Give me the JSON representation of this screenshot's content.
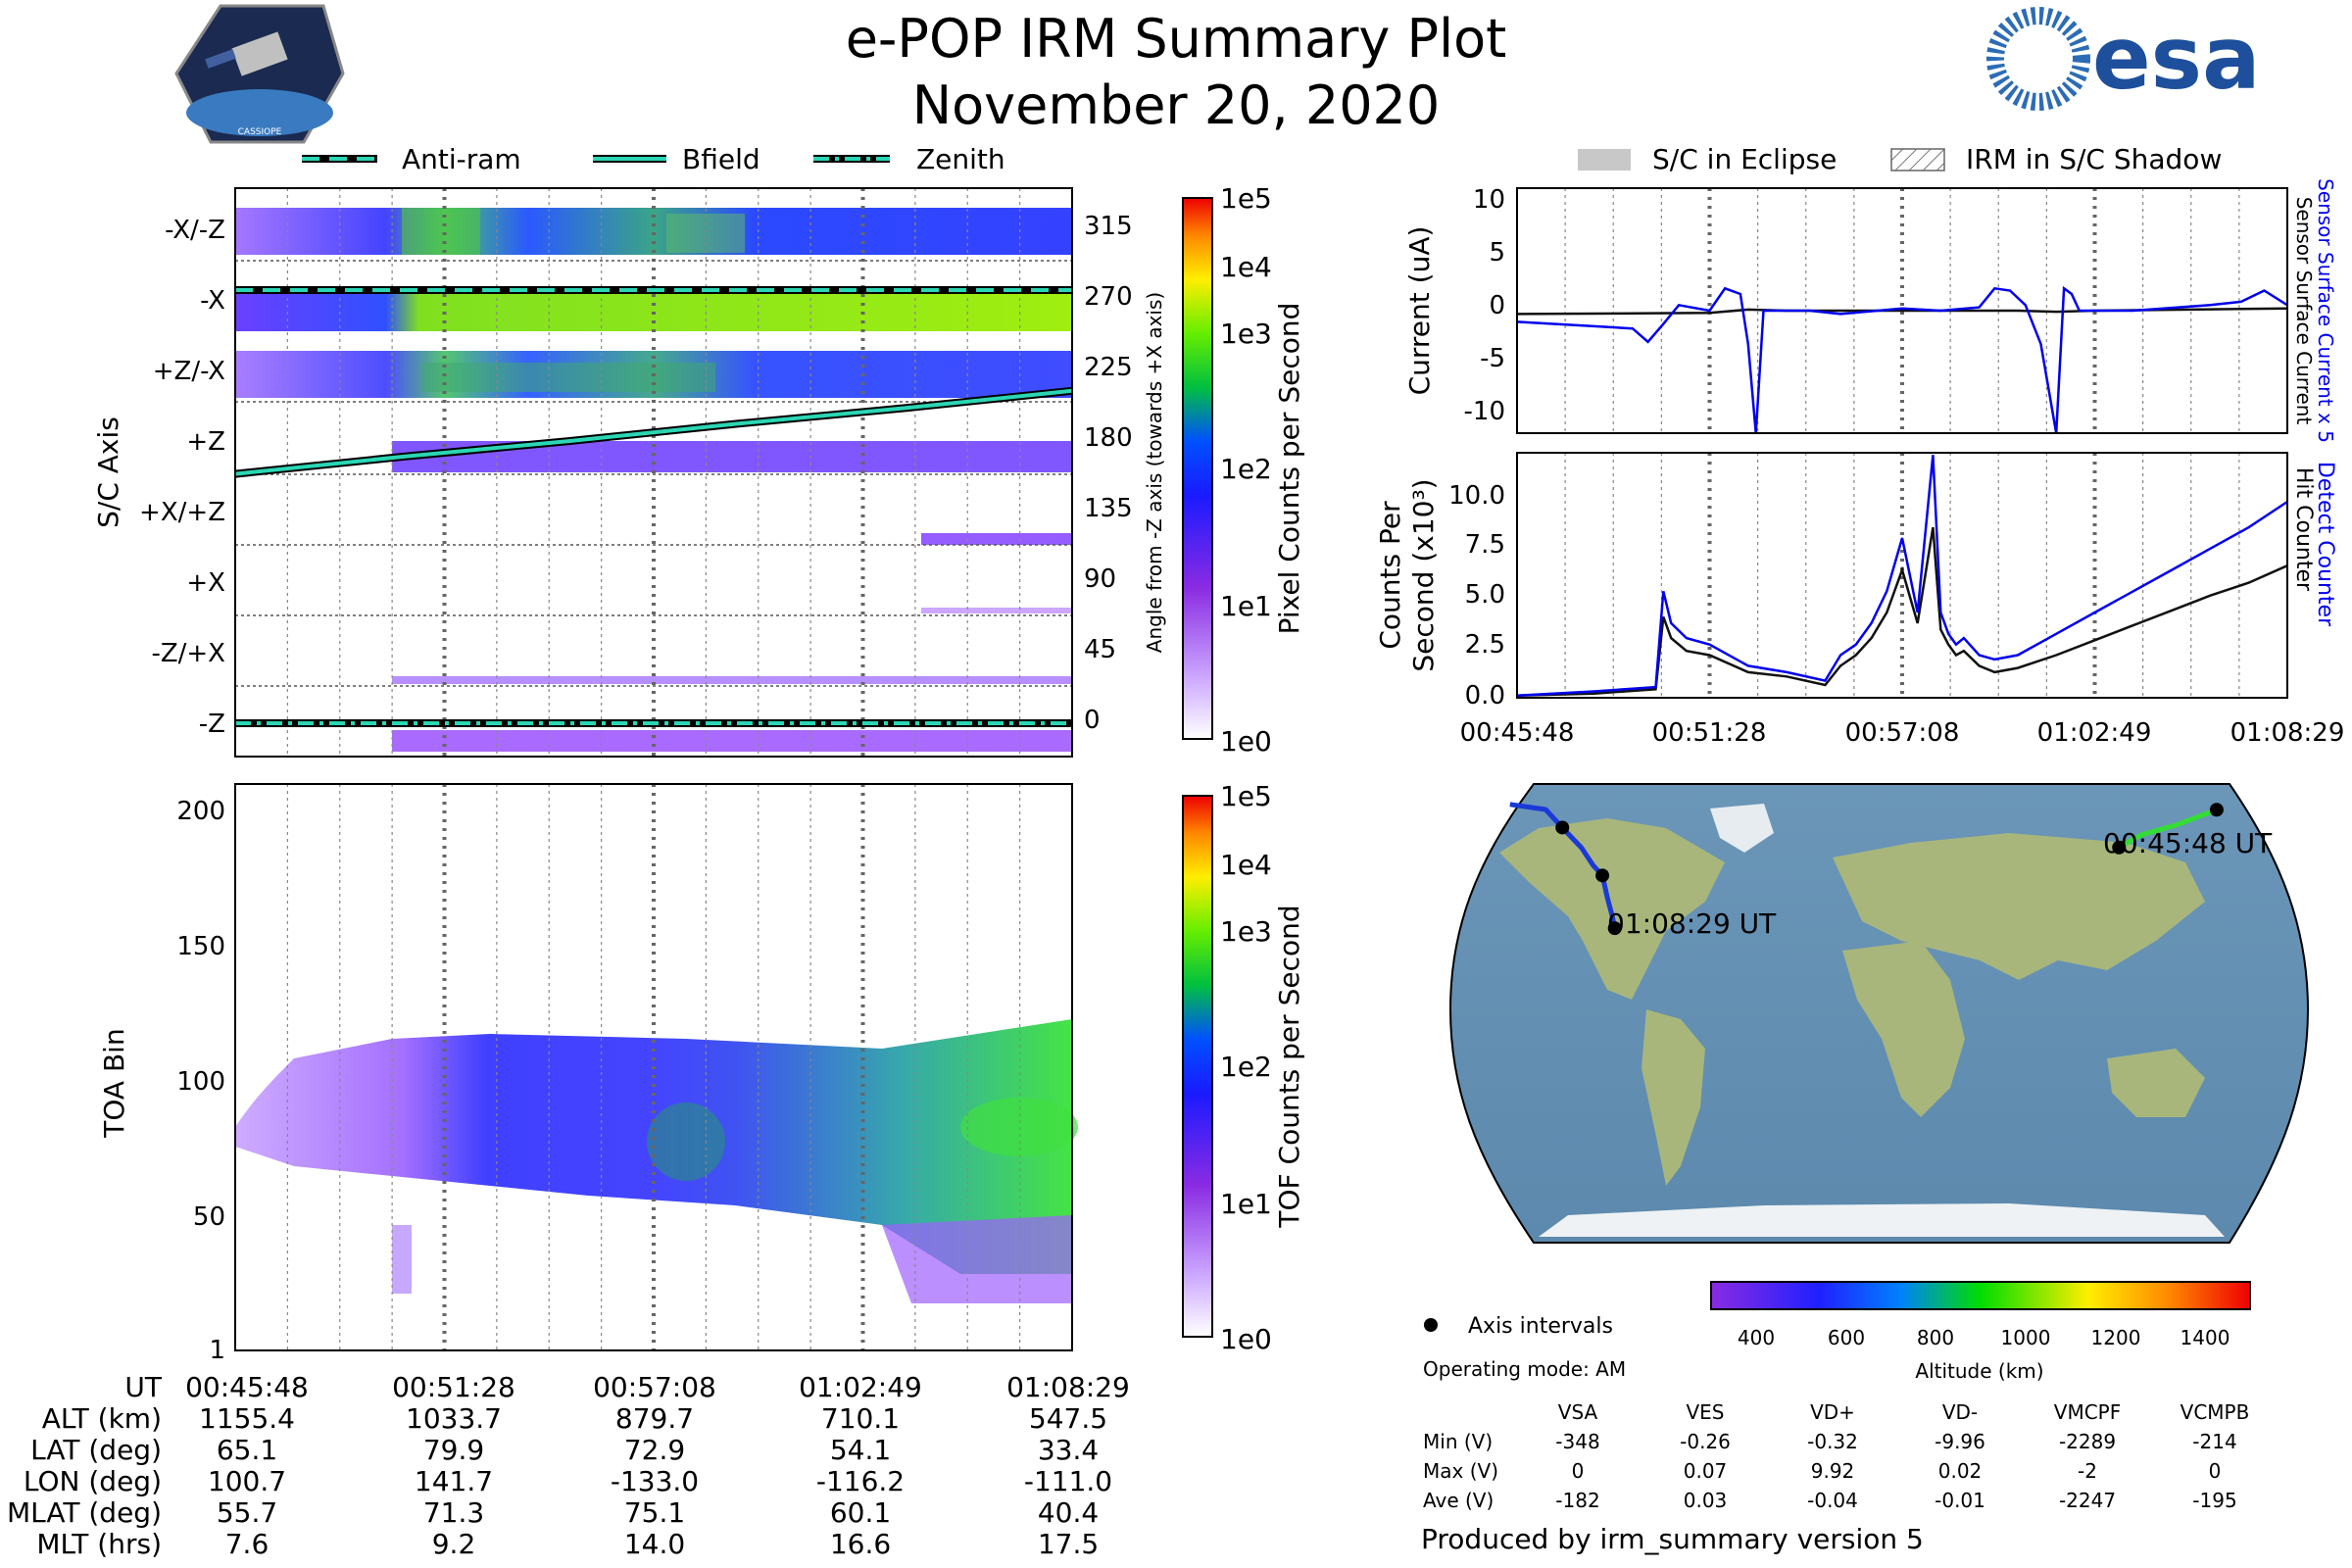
{
  "header": {
    "title": "e-POP IRM Summary Plot",
    "date": "November 20, 2020",
    "mission_logo_text": "CASSIOPE",
    "agency_logo_text": "esa"
  },
  "colors": {
    "trace_blue": "#0000ee",
    "trace_black": "#111111",
    "line_teal": "#2ad6b4",
    "gridline": "#555555"
  },
  "legend_top_left": [
    {
      "label": "Anti-ram",
      "style": "dashed"
    },
    {
      "label": "Bfield",
      "style": "solid"
    },
    {
      "label": "Zenith",
      "style": "dashdot"
    }
  ],
  "legend_top_right": [
    {
      "label": "S/C in Eclipse",
      "style": "gray-fill"
    },
    {
      "label": "IRM in S/C Shadow",
      "style": "hatched"
    }
  ],
  "time_ticks": [
    "00:45:48",
    "00:51:28",
    "00:57:08",
    "01:02:49",
    "01:08:29"
  ],
  "chart_data": [
    {
      "type": "heatmap",
      "id": "sc_axis_spectrogram",
      "ylabel": "S/C Axis",
      "y_categories": [
        "-X/-Z",
        "-X",
        "+Z/-X",
        "+Z",
        "+X/+Z",
        "+X",
        "-Z/+X",
        "-Z"
      ],
      "right_axis_label": "Angle from -Z axis (towards +X axis)",
      "right_ticks": [
        "315",
        "270",
        "225",
        "180",
        "135",
        "90",
        "45",
        "0"
      ],
      "colorbar": {
        "label": "Pixel Counts per Second",
        "ticks": [
          "1e5",
          "1e4",
          "1e3",
          "1e2",
          "1e1",
          "1e0"
        ],
        "scale": "log"
      },
      "bfield_angle_deg": [
        [
          0,
          159
        ],
        [
          0.2,
          170
        ],
        [
          0.4,
          180
        ],
        [
          0.6,
          191
        ],
        [
          0.8,
          201
        ],
        [
          1.0,
          212
        ]
      ],
      "anti_ram_angle_deg": 275,
      "zenith_angle_deg": 0
    },
    {
      "type": "heatmap",
      "id": "toa_spectrogram",
      "ylabel": "TOA Bin",
      "y_ticks": [
        "200",
        "150",
        "100",
        "50",
        "1"
      ],
      "ylim": [
        1,
        210
      ],
      "colorbar": {
        "label": "TOF Counts per Second",
        "ticks": [
          "1e5",
          "1e4",
          "1e3",
          "1e2",
          "1e1",
          "1e0"
        ],
        "scale": "log"
      }
    },
    {
      "type": "line",
      "id": "current_plot",
      "ylabel": "Current (uA)",
      "right_label_blue": "Sensor Surface Current x 5",
      "right_label_black": "Sensor Surface Current",
      "y_ticks": [
        "10",
        "5",
        "0",
        "-5",
        "-10"
      ],
      "ylim": [
        -11,
        11
      ],
      "series": [
        {
          "name": "Sensor Surface Current x 5",
          "color": "blue",
          "x": [
            0,
            0.05,
            0.1,
            0.15,
            0.17,
            0.19,
            0.21,
            0.25,
            0.27,
            0.29,
            0.3,
            0.31,
            0.32,
            0.38,
            0.42,
            0.5,
            0.55,
            0.6,
            0.62,
            0.64,
            0.66,
            0.68,
            0.7,
            0.71,
            0.72,
            0.73,
            0.8,
            0.9,
            0.94,
            0.97,
            1.0
          ],
          "y": [
            -1,
            -1.2,
            -1.4,
            -1.6,
            -2.8,
            -1.2,
            0.5,
            0,
            2,
            1.5,
            -3,
            -11,
            0,
            0,
            -0.3,
            0.2,
            0,
            0.3,
            2,
            1.8,
            0.5,
            -3,
            -11,
            2,
            1.5,
            0,
            0,
            0.5,
            0.8,
            1.8,
            0.5
          ]
        },
        {
          "name": "Sensor Surface Current",
          "color": "black",
          "x": [
            0,
            0.25,
            0.3,
            0.35,
            0.5,
            0.65,
            0.7,
            0.75,
            1.0
          ],
          "y": [
            -0.3,
            -0.2,
            0.1,
            0,
            0,
            0,
            -0.1,
            0,
            0.2
          ]
        }
      ]
    },
    {
      "type": "line",
      "id": "counts_plot",
      "ylabel": "Counts Per Second (x10³)",
      "ylabel_line1": "Counts Per",
      "ylabel_line2": "Second (x10³)",
      "right_label_blue": "Detect Counter",
      "right_label_black": "Hit Counter",
      "y_ticks": [
        "10.0",
        "7.5",
        "5.0",
        "2.5",
        "0.0"
      ],
      "ylim": [
        0,
        11.5
      ],
      "series": [
        {
          "name": "Detect Counter",
          "color": "blue",
          "x": [
            0,
            0.1,
            0.18,
            0.19,
            0.2,
            0.22,
            0.25,
            0.3,
            0.35,
            0.4,
            0.42,
            0.44,
            0.46,
            0.48,
            0.5,
            0.52,
            0.54,
            0.55,
            0.56,
            0.57,
            0.58,
            0.6,
            0.62,
            0.65,
            0.7,
            0.75,
            0.8,
            0.85,
            0.9,
            0.95,
            1.0
          ],
          "y": [
            0.1,
            0.3,
            0.5,
            5.0,
            3.5,
            2.8,
            2.5,
            1.5,
            1.2,
            0.8,
            2.0,
            2.5,
            3.5,
            5.0,
            7.5,
            4.0,
            11.4,
            4.0,
            3.0,
            2.5,
            2.8,
            2.0,
            1.8,
            2.0,
            3.0,
            4.0,
            5.0,
            6.0,
            7.0,
            8.0,
            9.2
          ]
        },
        {
          "name": "Hit Counter",
          "color": "black",
          "x": [
            0,
            0.1,
            0.18,
            0.19,
            0.2,
            0.22,
            0.25,
            0.3,
            0.35,
            0.4,
            0.42,
            0.44,
            0.46,
            0.48,
            0.5,
            0.52,
            0.54,
            0.55,
            0.56,
            0.57,
            0.58,
            0.6,
            0.62,
            0.65,
            0.7,
            0.75,
            0.8,
            0.85,
            0.9,
            0.95,
            1.0
          ],
          "y": [
            0.1,
            0.2,
            0.4,
            3.8,
            2.8,
            2.2,
            2.0,
            1.2,
            1.0,
            0.6,
            1.5,
            2.0,
            2.8,
            4.0,
            6.0,
            3.5,
            8.0,
            3.2,
            2.5,
            2.0,
            2.2,
            1.5,
            1.2,
            1.4,
            2.0,
            2.7,
            3.4,
            4.1,
            4.8,
            5.4,
            6.2
          ]
        }
      ]
    },
    {
      "type": "map",
      "id": "ground_track",
      "labels": [
        {
          "text": "00:45:48 UT",
          "lon": 100.7,
          "lat": 65.1
        },
        {
          "text": "01:08:29 UT",
          "lon": -111.0,
          "lat": 33.4
        }
      ],
      "track_east": [
        [
          100.7,
          65.1
        ],
        [
          110,
          70
        ],
        [
          125,
          74
        ],
        [
          141.7,
          79.9
        ]
      ],
      "track_west": [
        [
          -155,
          82
        ],
        [
          -140,
          80
        ],
        [
          -133,
          72.9
        ],
        [
          -125,
          65
        ],
        [
          -120,
          58
        ],
        [
          -116.2,
          54.1
        ],
        [
          -114,
          45
        ],
        [
          -112,
          38
        ],
        [
          -111,
          33.4
        ]
      ],
      "points": [
        [
          100.7,
          65.1
        ],
        [
          141.7,
          79.9
        ],
        [
          -133.0,
          72.9
        ],
        [
          -116.2,
          54.1
        ],
        [
          -111.0,
          33.4
        ]
      ],
      "altitude_colorbar": {
        "label": "Altitude (km)",
        "ticks": [
          "400",
          "600",
          "800",
          "1000",
          "1200",
          "1400"
        ],
        "range": [
          300,
          1500
        ]
      }
    }
  ],
  "orbit_table": {
    "rows": [
      {
        "label": "UT",
        "values": [
          "00:45:48",
          "00:51:28",
          "00:57:08",
          "01:02:49",
          "01:08:29"
        ]
      },
      {
        "label": "ALT (km)",
        "values": [
          "1155.4",
          "1033.7",
          "879.7",
          "710.1",
          "547.5"
        ]
      },
      {
        "label": "LAT (deg)",
        "values": [
          "65.1",
          "79.9",
          "72.9",
          "54.1",
          "33.4"
        ]
      },
      {
        "label": "LON (deg)",
        "values": [
          "100.7",
          "141.7",
          "-133.0",
          "-116.2",
          "-111.0"
        ]
      },
      {
        "label": "MLAT (deg)",
        "values": [
          "55.7",
          "71.3",
          "75.1",
          "60.1",
          "40.4"
        ]
      },
      {
        "label": "MLT (hrs)",
        "values": [
          "7.6",
          "9.2",
          "14.0",
          "16.6",
          "17.5"
        ]
      }
    ]
  },
  "info": {
    "axis_intervals": "Axis intervals",
    "operating_mode": "Operating mode: AM",
    "produced_by": "Produced by irm_summary version 5"
  },
  "voltage_table": {
    "columns": [
      "VSA",
      "VES",
      "VD+",
      "VD-",
      "VMCPF",
      "VCMPB"
    ],
    "rows": [
      {
        "label": "Min (V)",
        "values": [
          "-348",
          "-0.26",
          "-0.32",
          "-9.96",
          "-2289",
          "-214"
        ]
      },
      {
        "label": "Max (V)",
        "values": [
          "0",
          "0.07",
          "9.92",
          "0.02",
          "-2",
          "0"
        ]
      },
      {
        "label": "Ave (V)",
        "values": [
          "-182",
          "0.03",
          "-0.04",
          "-0.01",
          "-2247",
          "-195"
        ]
      }
    ]
  }
}
